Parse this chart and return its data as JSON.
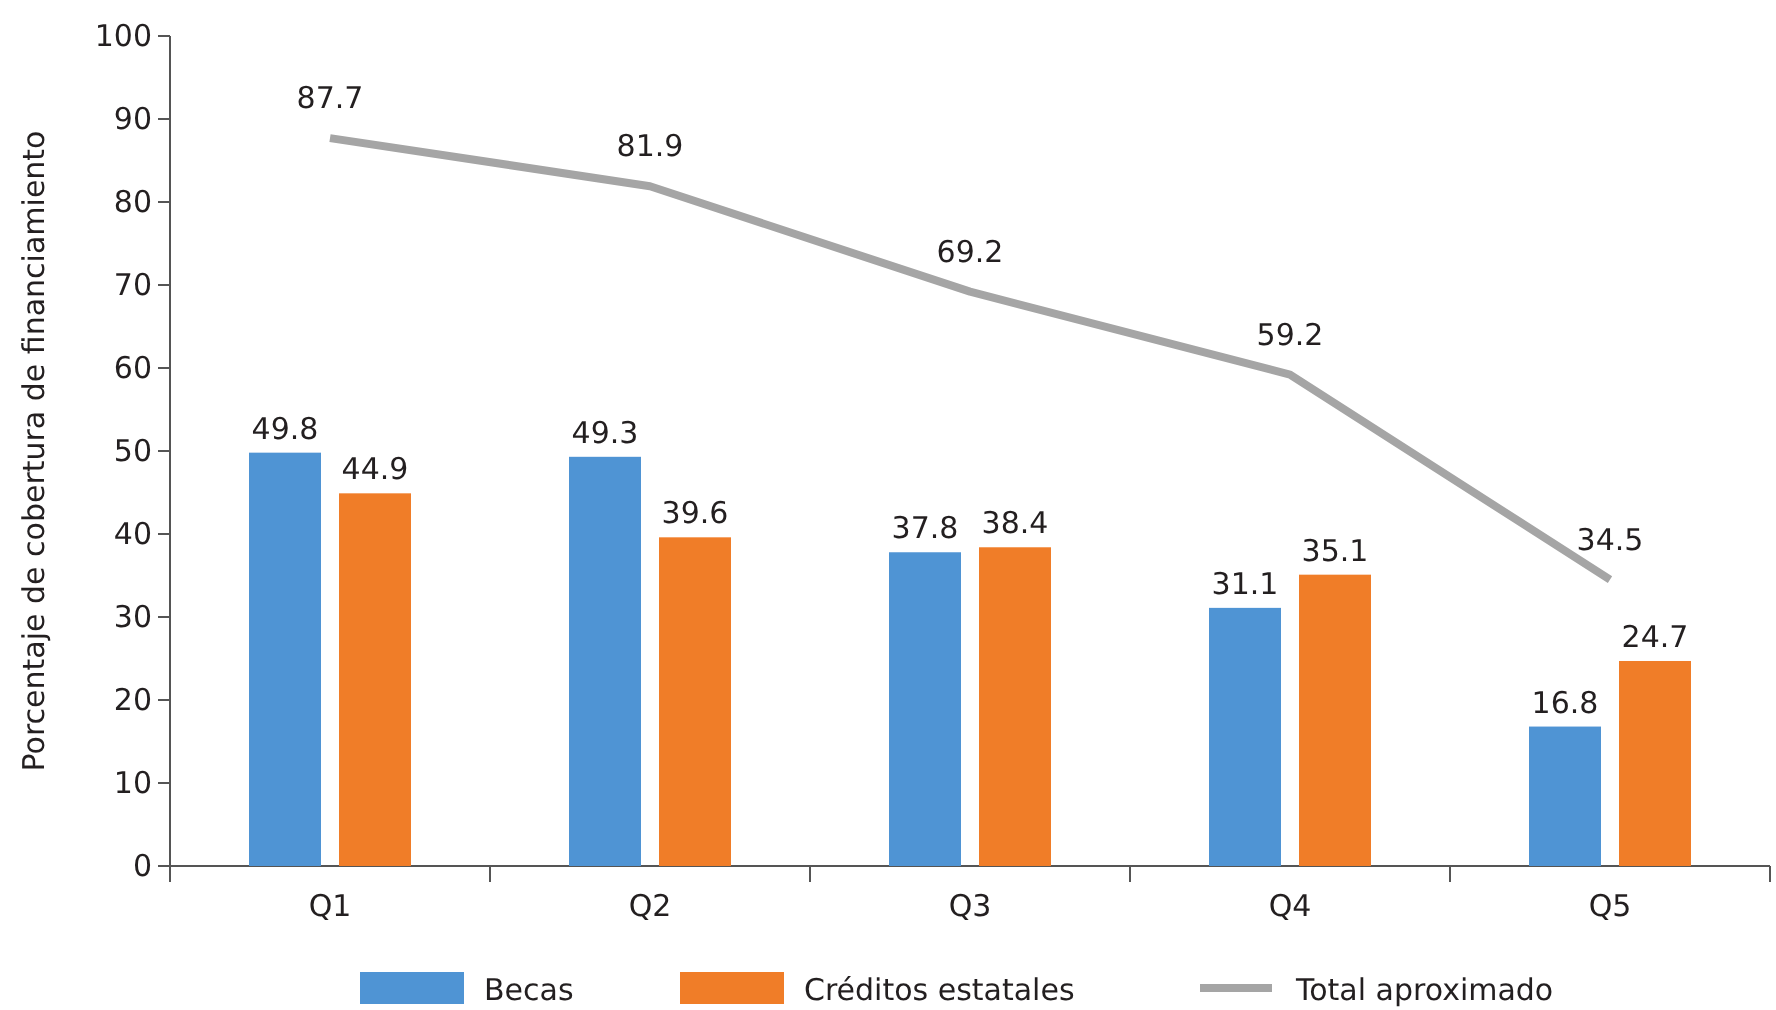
{
  "chart_data": {
    "type": "bar",
    "ylabel": "Porcentaje de cobertura de financiamiento",
    "categories": [
      "Q1",
      "Q2",
      "Q3",
      "Q4",
      "Q5"
    ],
    "series": [
      {
        "name": "Becas",
        "color": "#4f94d4",
        "values": [
          49.8,
          49.3,
          37.8,
          31.1,
          16.8
        ]
      },
      {
        "name": "Créditos estatales",
        "color": "#f07d28",
        "values": [
          44.9,
          39.6,
          38.4,
          35.1,
          24.7
        ]
      },
      {
        "name": "Total aproximado",
        "type": "line",
        "color": "#a5a5a5",
        "values": [
          87.7,
          81.9,
          69.2,
          59.2,
          34.5
        ]
      }
    ],
    "ylim": [
      0,
      100
    ],
    "yticks": [
      0,
      10,
      20,
      30,
      40,
      50,
      60,
      70,
      80,
      90,
      100
    ],
    "grid": false,
    "legend": "bottom",
    "data_labels": true,
    "marker": "none",
    "line_style": "solid"
  }
}
